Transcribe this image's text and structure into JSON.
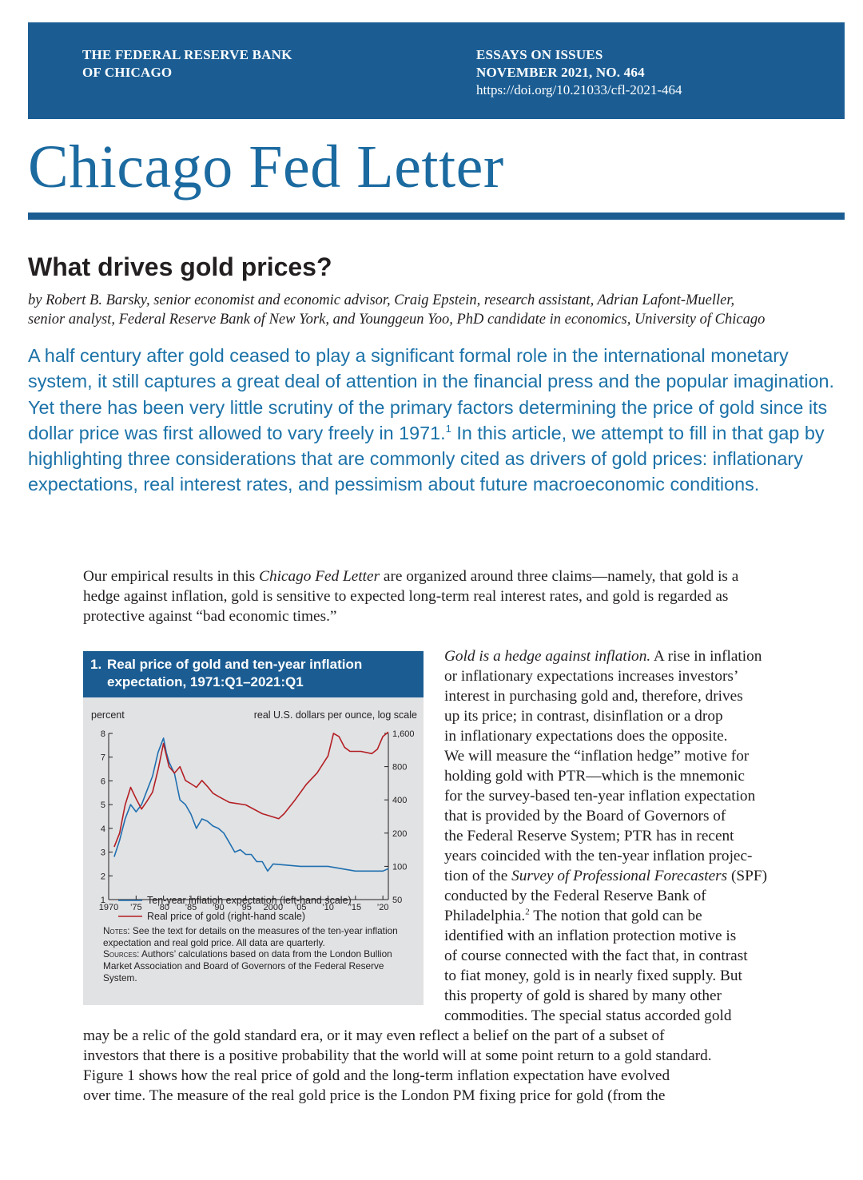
{
  "header": {
    "org_line1": "THE FEDERAL RESERVE BANK",
    "org_line2": "OF CHICAGO",
    "series": "ESSAYS ON ISSUES",
    "issue": "NOVEMBER 2021, NO. 464",
    "doi": "https://doi.org/10.21033/cfl-2021-464"
  },
  "masthead": "Chicago Fed Letter",
  "article": {
    "title": "What drives gold prices?",
    "byline_1": "by Robert B. Barsky, senior economist and economic advisor, Craig Epstein, research assistant, Adrian Lafont-Mueller,",
    "byline_2": "senior analyst, Federal Reserve Bank of New York, and Younggeun Yoo, PhD candidate in economics, University of Chicago",
    "abstract_a": "A half century after gold ceased to play a significant formal role in the international monetary system, it still captures a great deal of attention in the financial press and the popular imagination. Yet there has been very little scrutiny of the primary factors determining the price of gold since its dollar price was first allowed to vary freely in 1971.",
    "abstract_fn": "1",
    "abstract_b": " In this article, we attempt to fill in that gap by highlighting three considerations that are commonly cited as drivers of gold prices: inflationary expectations, real interest rates, and pessimism about future macroeconomic conditions.",
    "intro_a": "Our empirical results in this ",
    "intro_em": "Chicago Fed Letter",
    "intro_b": " are organized around three claims—namely, that gold is a hedge against inflation, gold is sensitive to expected long-term real interest rates, and gold is regarded as protective against “bad economic times.”"
  },
  "col2_lines": [
    {
      "em": "Gold is a hedge against inflation.",
      "text": " A rise in inflation"
    },
    {
      "text": "or inflationary expectations increases investors’"
    },
    {
      "text": "interest in purchasing gold and, therefore, drives"
    },
    {
      "text": "up its price; in contrast, disinflation or a drop"
    },
    {
      "text": "in inflationary expectations does the opposite."
    },
    {
      "text": "We will measure the “inflation hedge” motive for"
    },
    {
      "text": "holding gold with PTR—which is the mnemonic"
    },
    {
      "text": "for the survey-based ten-year inflation expectation"
    },
    {
      "text": "that is provided by the Board of Governors of"
    },
    {
      "text": "the Federal Reserve System; PTR has in recent"
    },
    {
      "text": "years coincided with the ten-year inflation projec-"
    },
    {
      "pre": "tion of the ",
      "em": "Survey of Professional Forecasters",
      "text": " (SPF)"
    },
    {
      "text": "conducted by the Federal Reserve Bank of"
    },
    {
      "pre": "Philadelphia.",
      "fn": "2",
      "text": " The notion that gold can be"
    },
    {
      "text": "identified with an inflation protection motive is"
    },
    {
      "text": "of course connected with the fact that, in contrast"
    },
    {
      "text": "to fiat money, gold is in nearly fixed supply. But"
    },
    {
      "text": "this property of gold is shared by many other"
    },
    {
      "text": "commodities. The special status accorded gold"
    }
  ],
  "full_lines": [
    "may be a relic of the gold standard era, or it may even reflect a belief on the part of a subset of",
    "investors that there is a positive probability that the world will at some point return to a gold standard.",
    "Figure 1 shows how the real price of gold and the long-term inflation expectation have evolved",
    "over time. The measure of the real gold price is the London PM fixing price for gold (from the"
  ],
  "figure": {
    "number": "1.",
    "title": "Real price of gold and ten-year inflation expectation, 1971:Q1–2021:Q1",
    "notes_label": "Notes:",
    "notes_text": " See the text for details on the measures of the ten-year inflation expectation and real gold price. All data are quarterly.",
    "sources_label": "Sources:",
    "sources_text": " Authors’ calculations based on data from the London Bullion Market Association and Board of Governors of the Federal Reserve System."
  },
  "chart_data": {
    "type": "line",
    "title": "Real price of gold and ten-year inflation expectation, 1971:Q1–2021:Q1",
    "left_axis_label": "percent",
    "right_axis_label": "real U.S. dollars per ounce, log scale",
    "left_ylim": [
      1,
      8
    ],
    "left_ticks": [
      "1",
      "2",
      "3",
      "4",
      "5",
      "6",
      "7",
      "8"
    ],
    "right_ylim": [
      50,
      1600
    ],
    "right_scale": "log",
    "right_ticks": [
      "50",
      "100",
      "200",
      "400",
      "800",
      "1,600"
    ],
    "xlim": [
      1970,
      2021
    ],
    "x_ticks": [
      1970,
      1975,
      1980,
      1985,
      1990,
      1995,
      2000,
      2005,
      2010,
      2015,
      2020
    ],
    "x_tick_labels": [
      "1970",
      "’75",
      "’80",
      "’85",
      "’90",
      "’95",
      "2000",
      "’05",
      "’10",
      "’15",
      "’20"
    ],
    "legend_placement": "bottom",
    "series": [
      {
        "name": "Ten-year inflation expectation (left-hand scale)",
        "axis": "left",
        "color": "#1f6fb0",
        "x": [
          1971,
          1972,
          1973,
          1974,
          1975,
          1976,
          1977,
          1978,
          1979,
          1980,
          1980.5,
          1981,
          1982,
          1983,
          1984,
          1985,
          1986,
          1987,
          1988,
          1989,
          1990,
          1991,
          1992,
          1993,
          1994,
          1995,
          1996,
          1997,
          1998,
          1999,
          2000,
          2005,
          2010,
          2015,
          2020,
          2021
        ],
        "y": [
          2.8,
          3.5,
          4.4,
          5.0,
          4.7,
          5.0,
          5.6,
          6.2,
          7.2,
          7.8,
          7.2,
          6.8,
          6.3,
          5.2,
          5.0,
          4.6,
          4.0,
          4.4,
          4.3,
          4.1,
          4.0,
          3.8,
          3.4,
          3.0,
          3.1,
          2.9,
          2.9,
          2.6,
          2.6,
          2.2,
          2.5,
          2.4,
          2.4,
          2.2,
          2.2,
          2.3
        ]
      },
      {
        "name": "Real price of gold (right-hand scale)",
        "axis": "right",
        "color": "#b31f24",
        "x": [
          1971,
          1972,
          1973,
          1974,
          1975,
          1976,
          1977,
          1978,
          1979,
          1980,
          1981,
          1982,
          1983,
          1984,
          1985,
          1986,
          1987,
          1988,
          1989,
          1990,
          1992,
          1995,
          1998,
          1999,
          2000,
          2001,
          2002,
          2004,
          2006,
          2008,
          2010,
          2011,
          2012,
          2013,
          2014,
          2016,
          2018,
          2019,
          2020,
          2021
        ],
        "y": [
          150,
          200,
          360,
          520,
          410,
          330,
          390,
          470,
          750,
          1300,
          800,
          700,
          800,
          600,
          560,
          520,
          600,
          530,
          460,
          430,
          380,
          360,
          300,
          290,
          280,
          270,
          300,
          400,
          550,
          700,
          1000,
          1600,
          1500,
          1200,
          1100,
          1100,
          1050,
          1150,
          1500,
          1650
        ]
      }
    ]
  }
}
